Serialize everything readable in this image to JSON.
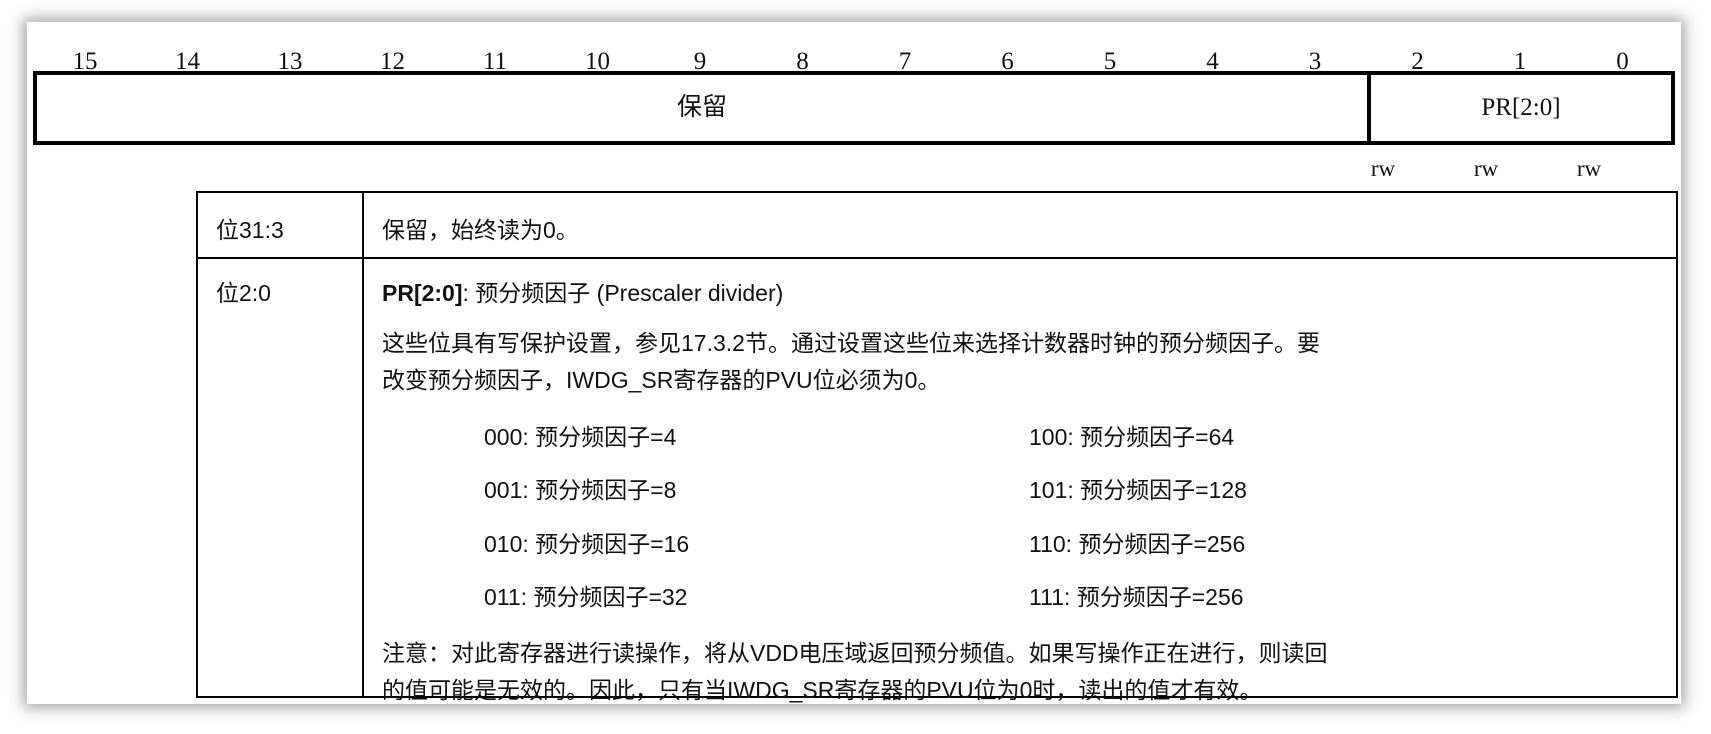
{
  "bit_numbers": [
    "15",
    "14",
    "13",
    "12",
    "11",
    "10",
    "9",
    "8",
    "7",
    "6",
    "5",
    "4",
    "3",
    "2",
    "1",
    "0"
  ],
  "register": {
    "fields": [
      {
        "name": "保留"
      },
      {
        "name": "PR[2:0]",
        "access": [
          "rw",
          "rw",
          "rw"
        ]
      }
    ]
  },
  "table": {
    "rows": [
      {
        "bits": "位31:3",
        "description": "保留，始终读为0。"
      },
      {
        "bits": "位2:0",
        "field_name": "PR[2:0]",
        "field_title": ": 预分频因子 (Prescaler divider)",
        "para1_line1": "这些位具有写保护设置，参见17.3.2节。通过设置这些位来选择计数器时钟的预分频因子。要",
        "para1_line2": "改变预分频因子，IWDG_SR寄存器的PVU位必须为0。",
        "values": [
          "000: 预分频因子=4",
          "001: 预分频因子=8",
          "010: 预分频因子=16",
          "011: 预分频因子=32",
          "100: 预分频因子=64",
          "101: 预分频因子=128",
          "110: 预分频因子=256",
          "111: 预分频因子=256"
        ],
        "note_line1": "注意：对此寄存器进行读操作，将从VDD电压域返回预分频值。如果写操作正在进行，则读回",
        "note_line2": "的值可能是无效的。因此，只有当IWDG_SR寄存器的PVU位为0时，读出的值才有效。"
      }
    ]
  }
}
